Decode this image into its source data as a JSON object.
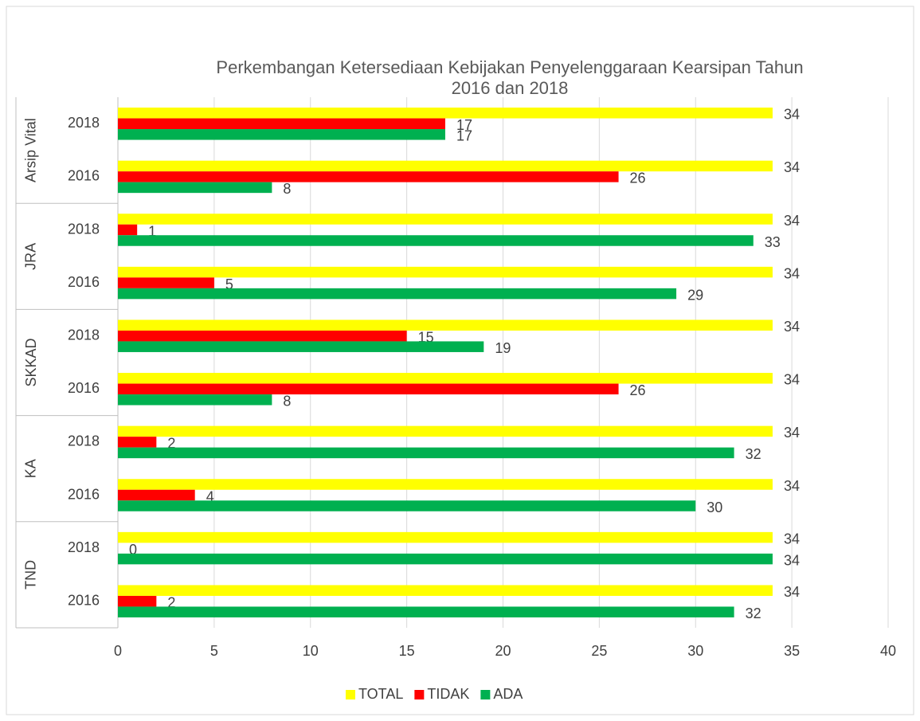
{
  "chart_data": {
    "type": "bar",
    "orientation": "horizontal",
    "title": "Perkembangan Ketersediaan Kebijakan Penyelenggaraan Kearsipan Tahun 2016 dan 2018",
    "groups": [
      {
        "name": "Arsip Vital",
        "categories": [
          "2018",
          "2016"
        ]
      },
      {
        "name": "JRA",
        "categories": [
          "2018",
          "2016"
        ]
      },
      {
        "name": "SKKAD",
        "categories": [
          "2018",
          "2016"
        ]
      },
      {
        "name": "KA",
        "categories": [
          "2018",
          "2016"
        ]
      },
      {
        "name": "TND",
        "categories": [
          "2018",
          "2016"
        ]
      }
    ],
    "series": [
      {
        "name": "TOTAL",
        "color": "#ffff00",
        "values": [
          34,
          34,
          34,
          34,
          34,
          34,
          34,
          34,
          34,
          34
        ]
      },
      {
        "name": "TIDAK",
        "color": "#ff0000",
        "values": [
          17,
          26,
          1,
          5,
          15,
          26,
          2,
          4,
          0,
          2
        ]
      },
      {
        "name": "ADA",
        "color": "#00b050",
        "values": [
          17,
          8,
          33,
          29,
          19,
          8,
          32,
          30,
          34,
          32
        ]
      }
    ],
    "xlim": [
      0,
      40
    ],
    "xticks": [
      0,
      5,
      10,
      15,
      20,
      25,
      30,
      35,
      40
    ],
    "grid": true,
    "legend": "bottom"
  }
}
